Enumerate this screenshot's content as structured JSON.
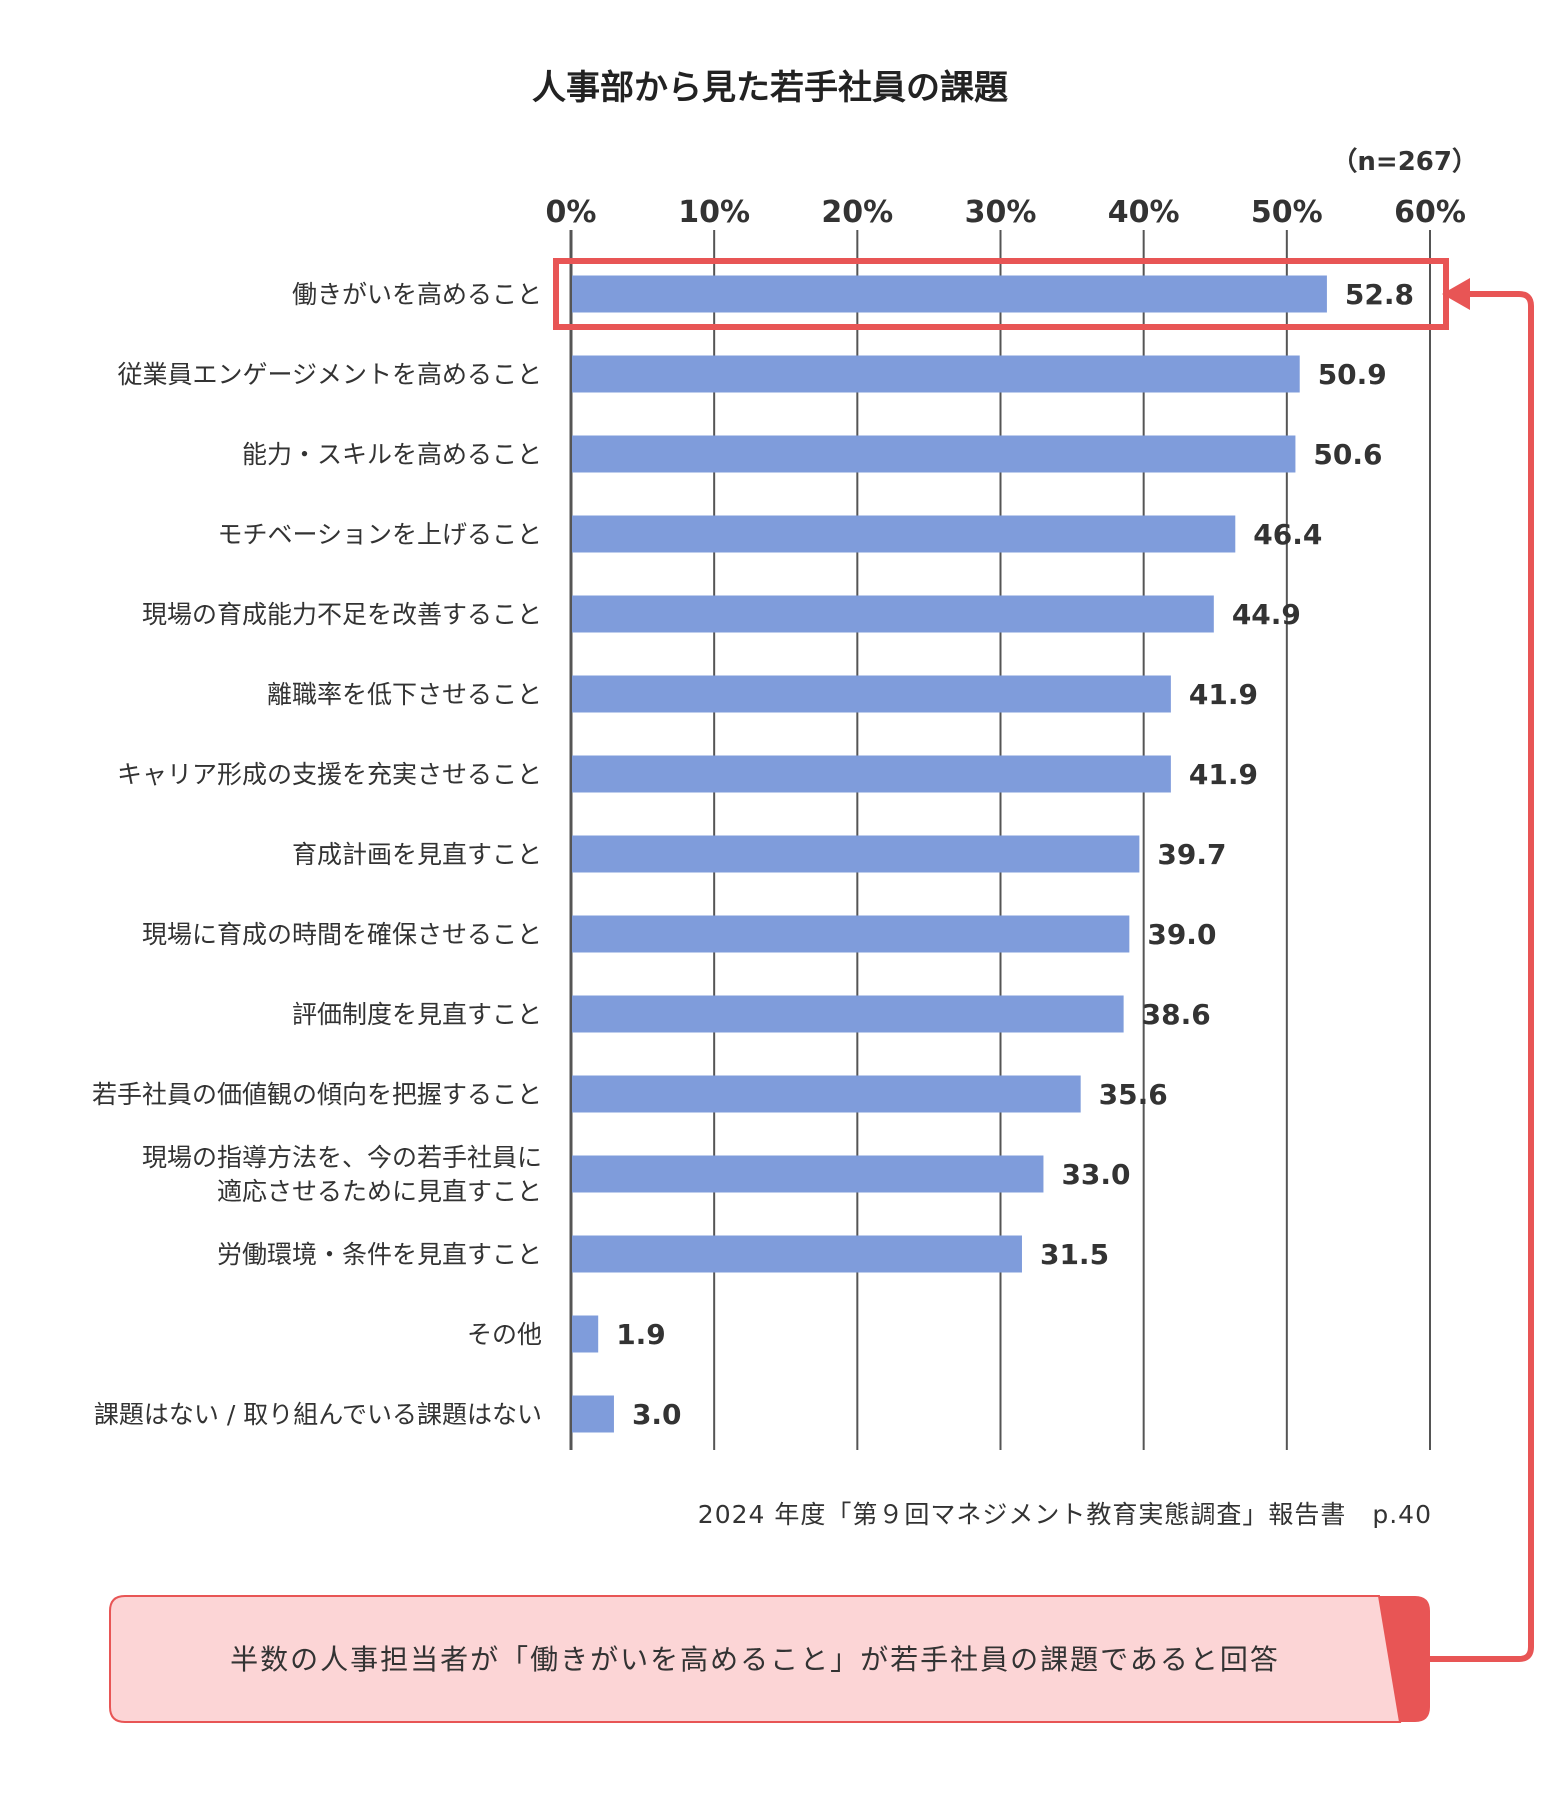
{
  "chart_data": {
    "type": "bar",
    "orientation": "horizontal",
    "title": "人事部から見た若手社員の課題",
    "sample_size_label": "（n=267）",
    "xlim": [
      0,
      60
    ],
    "xticks": [
      "0%",
      "10%",
      "20%",
      "30%",
      "40%",
      "50%",
      "60%"
    ],
    "xtick_values": [
      0,
      10,
      20,
      30,
      40,
      50,
      60
    ],
    "grid": true,
    "categories": [
      [
        "働きがいを高めること"
      ],
      [
        "従業員エンゲージメントを高めること"
      ],
      [
        "能力・スキルを高めること"
      ],
      [
        "モチベーションを上げること"
      ],
      [
        "現場の育成能力不足を改善すること"
      ],
      [
        "離職率を低下させること"
      ],
      [
        "キャリア形成の支援を充実させること"
      ],
      [
        "育成計画を見直すこと"
      ],
      [
        "現場に育成の時間を確保させること"
      ],
      [
        "評価制度を見直すこと"
      ],
      [
        "若手社員の価値観の傾向を把握すること"
      ],
      [
        "現場の指導方法を、今の若手社員に",
        "適応させるために見直すこと"
      ],
      [
        "労働環境・条件を見直すこと"
      ],
      [
        "その他"
      ],
      [
        "課題はない / 取り組んでいる課題はない"
      ]
    ],
    "values": [
      52.8,
      50.9,
      50.6,
      46.4,
      44.9,
      41.9,
      41.9,
      39.7,
      39.0,
      38.6,
      35.6,
      33.0,
      31.5,
      1.9,
      3.0
    ],
    "value_labels": [
      "52.8",
      "50.9",
      "50.6",
      "46.4",
      "44.9",
      "41.9",
      "41.9",
      "39.7",
      "39.0",
      "38.6",
      "35.6",
      "33.0",
      "31.5",
      "1.9",
      "3.0"
    ],
    "highlight_index": 0,
    "source": "2024 年度「第９回マネジメント教育実態調査」報告書　p.40"
  },
  "callout": {
    "text": "半数の人事担当者が「働きがいを高めること」が若手社員の課題であると回答"
  },
  "colors": {
    "bar": "#7f9cdb",
    "grid": "#555555",
    "highlight": "#e85555",
    "callout_fill": "#fcd5d6",
    "callout_tab": "#e85555"
  }
}
